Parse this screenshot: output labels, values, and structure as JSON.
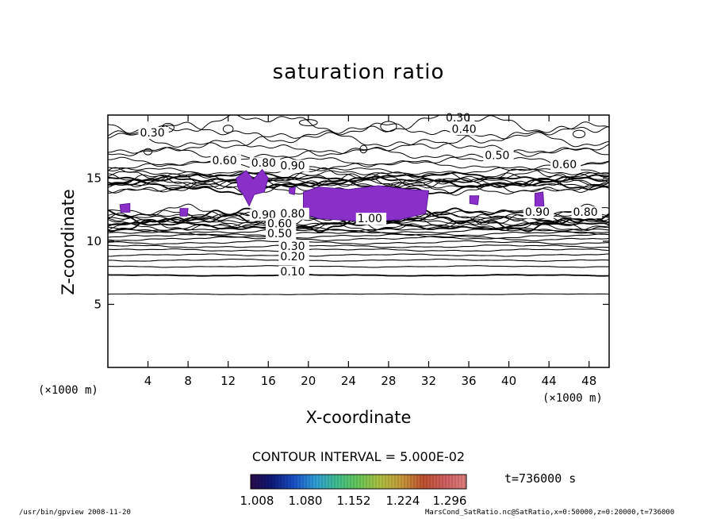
{
  "chart_data": {
    "type": "contour",
    "title": "saturation ratio",
    "xlabel": "X-coordinate",
    "ylabel": "Z-coordinate",
    "x_unit": "(×1000 m)",
    "z_unit": "(×1000 m)",
    "xlim": [
      0,
      50
    ],
    "ylim": [
      0,
      20
    ],
    "x_ticks": [
      4,
      8,
      12,
      16,
      20,
      24,
      28,
      32,
      36,
      40,
      44,
      48
    ],
    "y_ticks": [
      5,
      10,
      15
    ],
    "contour_interval": "CONTOUR INTERVAL = 5.000E-02",
    "contour_labels": [
      {
        "text": "0.30",
        "x": 3.2,
        "z": 18.3
      },
      {
        "text": "0.30",
        "x": 33.7,
        "z": 19.5
      },
      {
        "text": "0.40",
        "x": 34.3,
        "z": 18.6
      },
      {
        "text": "0.50",
        "x": 37.6,
        "z": 16.5
      },
      {
        "text": "0.60",
        "x": 44.3,
        "z": 15.8
      },
      {
        "text": "0.60",
        "x": 10.4,
        "z": 16.1
      },
      {
        "text": "0.80",
        "x": 14.3,
        "z": 15.9
      },
      {
        "text": "0.90",
        "x": 17.2,
        "z": 15.7
      },
      {
        "text": "1.00",
        "x": 24.9,
        "z": 11.5
      },
      {
        "text": "0.90",
        "x": 14.3,
        "z": 11.8
      },
      {
        "text": "0.80",
        "x": 17.2,
        "z": 11.9
      },
      {
        "text": "0.90",
        "x": 41.6,
        "z": 12.0
      },
      {
        "text": "0.80",
        "x": 46.4,
        "z": 12.0
      },
      {
        "text": "0.60",
        "x": 15.9,
        "z": 11.1
      },
      {
        "text": "0.50",
        "x": 15.9,
        "z": 10.3
      },
      {
        "text": "0.30",
        "x": 17.2,
        "z": 9.3
      },
      {
        "text": "0.20",
        "x": 17.2,
        "z": 8.5
      },
      {
        "text": "0.10",
        "x": 17.2,
        "z": 7.3
      }
    ],
    "colorbar": {
      "ticks": [
        "1.008",
        "1.080",
        "1.152",
        "1.224",
        "1.296"
      ],
      "colors": [
        "#2a0a4a",
        "#0b1a7a",
        "#1a50c8",
        "#2fa0d8",
        "#3fbf8f",
        "#68c858",
        "#b0c040",
        "#c89a3a",
        "#c05030",
        "#d06060",
        "#e08080"
      ]
    },
    "filled_color": "#8a30c8",
    "time": "t=736000 s"
  },
  "footer": {
    "left": "/usr/bin/gpview   2008-11-20",
    "right": "MarsCond_SatRatio.nc@SatRatio,x=0:50000,z=0:20000,t=736000"
  }
}
